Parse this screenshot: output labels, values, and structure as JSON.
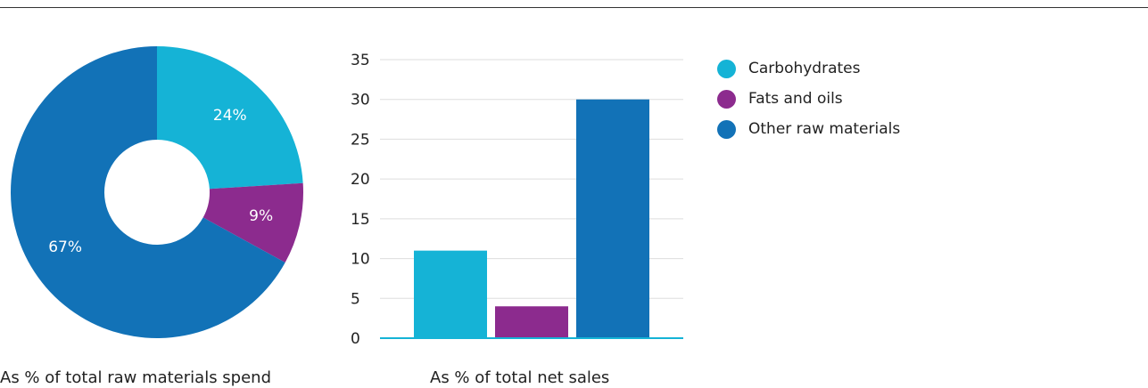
{
  "legend": {
    "items": [
      {
        "label": "Carbohydrates",
        "color": "#15b3d6"
      },
      {
        "label": "Fats and oils",
        "color": "#8c2b8e"
      },
      {
        "label": "Other raw materials",
        "color": "#1272b7"
      }
    ]
  },
  "captions": {
    "donut": "As % of total raw materials spend",
    "bar": "As % of total net sales"
  },
  "chart_data": [
    {
      "type": "pie",
      "subtype": "donut",
      "categories": [
        "Carbohydrates",
        "Fats and oils",
        "Other raw materials"
      ],
      "values": [
        24,
        9,
        67
      ],
      "labels": [
        "24%",
        "9%",
        "67%"
      ],
      "colors": [
        "#15b3d6",
        "#8c2b8e",
        "#1272b7"
      ],
      "xlabel": "As % of total raw materials spend"
    },
    {
      "type": "bar",
      "categories": [
        "Carbohydrates",
        "Fats and oils",
        "Other raw materials"
      ],
      "values": [
        11,
        4,
        30
      ],
      "colors": [
        "#15b3d6",
        "#8c2b8e",
        "#1272b7"
      ],
      "ylim": [
        0,
        35
      ],
      "yticks": [
        "0",
        "5",
        "10",
        "15",
        "20",
        "25",
        "30",
        "35"
      ],
      "grid": true,
      "xlabel": "As % of total net sales"
    }
  ]
}
